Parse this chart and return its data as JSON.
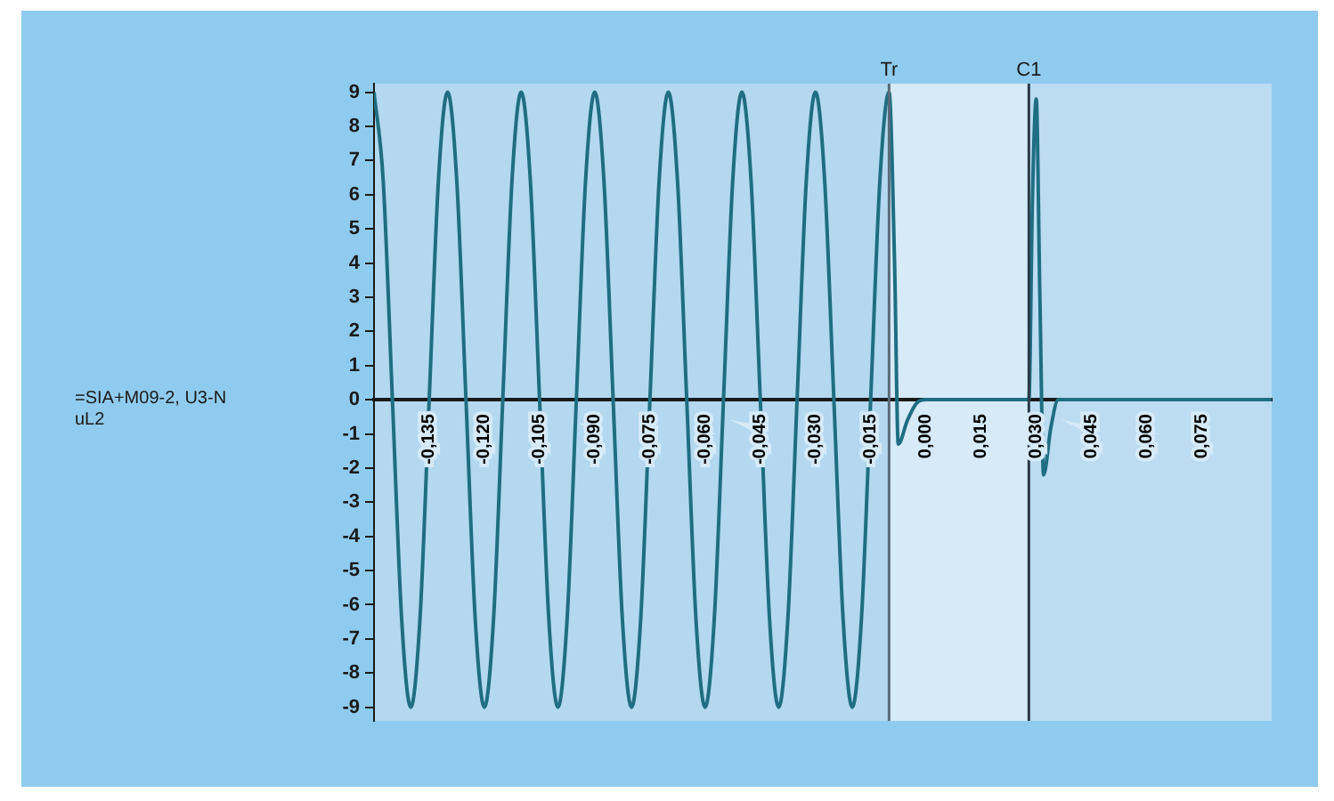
{
  "chart_data": {
    "type": "line",
    "annotations": [
      "=SIA+M09-2, U3-N uL2"
    ],
    "x": [
      -0.15,
      -0.1475,
      -0.145,
      -0.1425,
      -0.14,
      -0.1375,
      -0.135,
      -0.1325,
      -0.13,
      -0.1275,
      -0.125,
      -0.1225,
      -0.12,
      -0.1175,
      -0.115,
      -0.1125,
      -0.11,
      -0.1075,
      -0.105,
      -0.1025,
      -0.1,
      -0.0975,
      -0.095,
      -0.0925,
      -0.09,
      -0.0875,
      -0.085,
      -0.0825,
      -0.08,
      -0.0775,
      -0.075,
      -0.0725,
      -0.07,
      -0.0675,
      -0.065,
      -0.0625,
      -0.06,
      -0.0575,
      -0.055,
      -0.0525,
      -0.05,
      -0.0475,
      -0.045,
      -0.0425,
      -0.04,
      -0.0375,
      -0.035,
      -0.0325,
      -0.03,
      -0.0275,
      -0.025,
      -0.0225,
      -0.02,
      -0.0175,
      -0.015,
      -0.0125,
      -0.01,
      -0.0085,
      -0.0075,
      -0.005,
      -0.0025,
      0,
      0.028,
      0.029,
      0.03,
      0.031,
      0.032,
      0.034,
      0.036,
      0.094
    ],
    "series": [
      {
        "color": "#1f6e82",
        "values": [
          9,
          6.4,
          0,
          -6.4,
          -9,
          -6.4,
          0,
          6.4,
          9,
          6.4,
          0,
          -6.4,
          -9,
          -6.4,
          0,
          6.4,
          9,
          6.4,
          0,
          -6.4,
          -9,
          -6.4,
          0,
          6.4,
          9,
          6.4,
          0,
          -6.4,
          -9,
          -6.4,
          0,
          6.4,
          9,
          6.4,
          0,
          -6.4,
          -9,
          -6.4,
          0,
          6.4,
          9,
          6.4,
          0,
          -6.4,
          -9,
          -6.4,
          0,
          6.4,
          9,
          6.4,
          0,
          -6.4,
          -9,
          -6.4,
          0,
          6.4,
          9,
          4,
          -1.3,
          -0.6,
          -0.1,
          0,
          0,
          6,
          8.8,
          3,
          -2.2,
          -0.8,
          0,
          0
        ]
      }
    ],
    "xlim": [
      -0.15,
      0.094
    ],
    "xticks": [
      {
        "value": -0.135,
        "label": "-0,135"
      },
      {
        "value": -0.12,
        "label": "-0,120"
      },
      {
        "value": -0.105,
        "label": "-0,105"
      },
      {
        "value": -0.09,
        "label": "-0,090"
      },
      {
        "value": -0.075,
        "label": "-0,075"
      },
      {
        "value": -0.06,
        "label": "-0,060"
      },
      {
        "value": -0.045,
        "label": "-0,045"
      },
      {
        "value": -0.03,
        "label": "-0,030"
      },
      {
        "value": -0.015,
        "label": "-0,015"
      },
      {
        "value": 0,
        "label": "0,000"
      },
      {
        "value": 0.015,
        "label": "0,015"
      },
      {
        "value": 0.03,
        "label": "0,030"
      },
      {
        "value": 0.045,
        "label": "0,045"
      },
      {
        "value": 0.06,
        "label": "0,060"
      },
      {
        "value": 0.075,
        "label": "0,075"
      }
    ],
    "ylim": [
      -9.4,
      9.25
    ],
    "yticks": [
      -9,
      -8,
      -7,
      -6,
      -5,
      -4,
      -3,
      -2,
      -1,
      0,
      1,
      2,
      3,
      4,
      5,
      6,
      7,
      8,
      9
    ],
    "ref_lines": [
      {
        "axis": "x",
        "value": -0.01,
        "label": "Tr",
        "color": "#5a6a78"
      },
      {
        "axis": "x",
        "value": 0.028,
        "label": "C1",
        "color": "#2a3a48"
      }
    ],
    "bands": [
      {
        "axis": "x",
        "from": -0.01,
        "to": 0.028,
        "color": "#d6eaf7"
      },
      {
        "axis": "x",
        "from": 0.028,
        "to": 0.094,
        "color": "#bcdcf2"
      }
    ],
    "grid": false,
    "legend": false,
    "marker": "none",
    "line_style": "solid"
  }
}
